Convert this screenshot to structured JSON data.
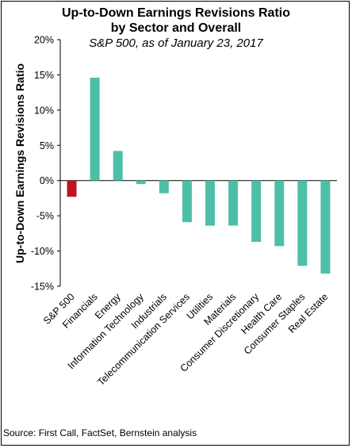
{
  "chart_data": {
    "type": "bar",
    "title": "Up-to-Down Earnings Revisions Ratio",
    "title_line2": "by Sector and Overall",
    "subtitle": "S&P 500, as of January 23, 2017",
    "ylabel": "Up-to-Down Earnings Revisions Ratio",
    "xlabel": "",
    "ylim": [
      -15,
      20
    ],
    "yticks": [
      20,
      15,
      10,
      5,
      0,
      -5,
      -10,
      -15
    ],
    "ytick_labels": [
      "20%",
      "15%",
      "10%",
      "5%",
      "0%",
      "-5%",
      "-10%",
      "-15%"
    ],
    "categories": [
      "S&P 500",
      "Financials",
      "Energy",
      "Information Technology",
      "Industrials",
      "Telecommunication Services",
      "Utilities",
      "Materials",
      "Consumer Discretionary",
      "Health Care",
      "Consumer Staples",
      "Real Estate"
    ],
    "values": [
      -2.3,
      14.6,
      4.2,
      -0.5,
      -1.8,
      -5.9,
      -6.4,
      -6.4,
      -8.7,
      -9.3,
      -12.1,
      -13.2
    ],
    "bar_colors": [
      "#c0141c",
      "#4dbfa8",
      "#4dbfa8",
      "#4dbfa8",
      "#4dbfa8",
      "#4dbfa8",
      "#4dbfa8",
      "#4dbfa8",
      "#4dbfa8",
      "#4dbfa8",
      "#4dbfa8",
      "#4dbfa8"
    ],
    "grid": false,
    "legend": "none"
  },
  "source_text": "Source: First Call, FactSet, Bernstein analysis"
}
